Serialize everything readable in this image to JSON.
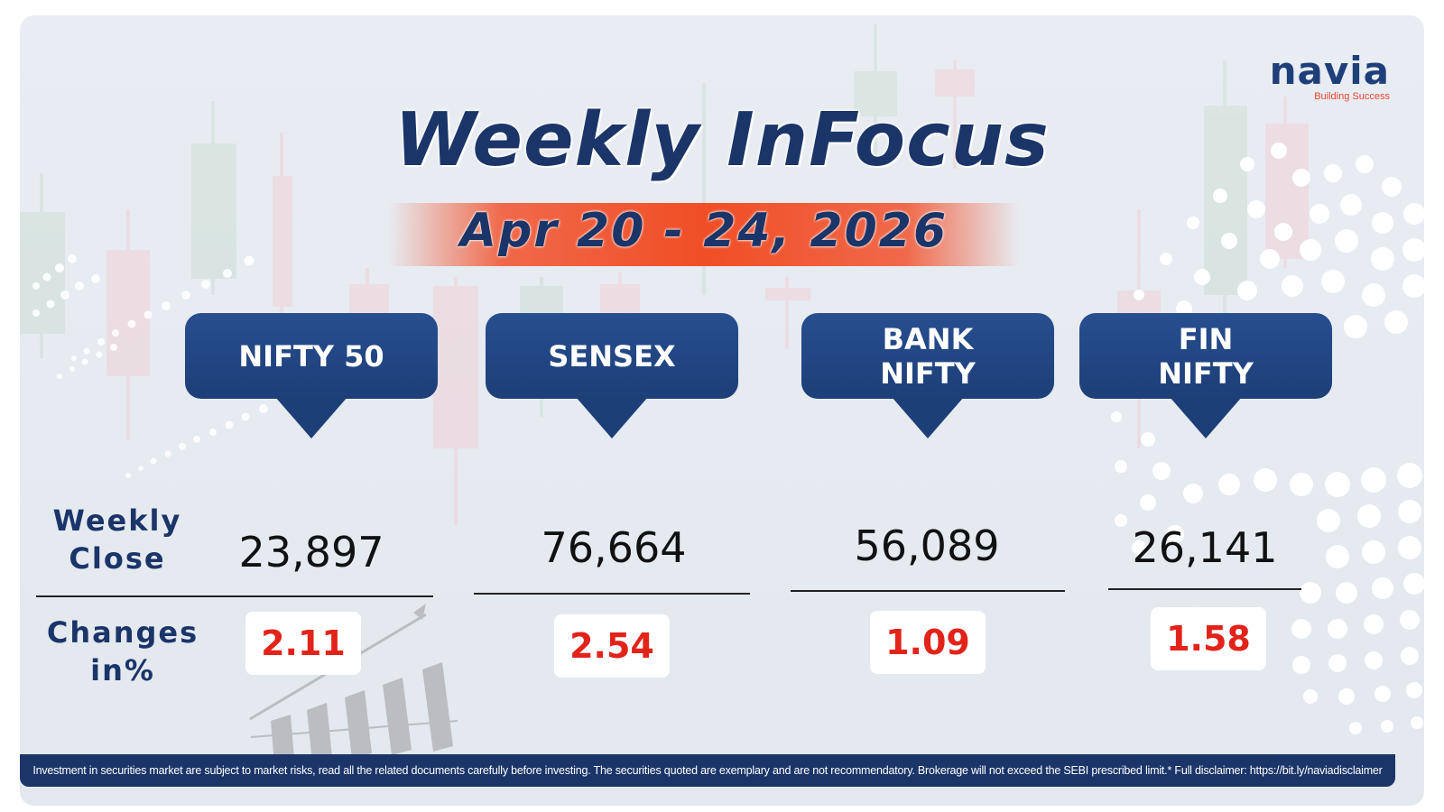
{
  "brand": {
    "logo_word": "navia",
    "tagline": "Building Success"
  },
  "header": {
    "title": "Weekly InFocus",
    "date_range": "Apr 20 - 24, 2026"
  },
  "row_labels": {
    "weekly_close": "Weekly\nClose",
    "changes": "Changes\nin%"
  },
  "indices": [
    {
      "name": "NIFTY 50",
      "weekly_close": "23,897",
      "change_pct": "2.11"
    },
    {
      "name": "SENSEX",
      "weekly_close": "76,664",
      "change_pct": "2.54"
    },
    {
      "name": "BANK\nNIFTY",
      "weekly_close": "56,089",
      "change_pct": "1.09"
    },
    {
      "name": "FIN\nNIFTY",
      "weekly_close": "26,141",
      "change_pct": "1.58"
    }
  ],
  "footer": {
    "disclaimer": "Investment in securities market are subject to market risks, read all the related documents carefully before investing. The securities quoted are exemplary and are not recommendatory. Brokerage will not exceed the SEBI prescribed limit.* Full disclaimer: https://bit.ly/naviadisclaimer"
  },
  "colors": {
    "navy": "#1b3569",
    "callout": "#1d3f78",
    "accent_orange": "#f04e25",
    "change_red": "#e2231a"
  }
}
